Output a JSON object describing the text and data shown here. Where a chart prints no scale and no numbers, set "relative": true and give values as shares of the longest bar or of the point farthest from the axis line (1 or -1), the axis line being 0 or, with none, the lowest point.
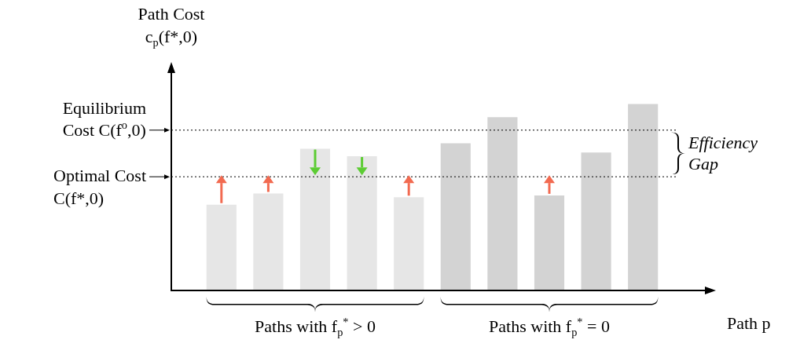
{
  "chart_data": {
    "type": "bar",
    "relative": true,
    "categories": [
      null,
      null,
      null,
      null,
      null,
      null,
      null,
      null,
      null,
      null
    ],
    "values": [
      0.46,
      0.52,
      0.76,
      0.72,
      0.5,
      0.79,
      0.93,
      0.51,
      0.74,
      1
    ],
    "colors": [
      "#e6e6e6",
      "#e6e6e6",
      "#e6e6e6",
      "#e6e6e6",
      "#e6e6e6",
      "#d3d3d3",
      "#d3d3d3",
      "#d3d3d3",
      "#d3d3d3",
      "#d3d3d3"
    ],
    "ylabel": "Path Cost\nc$_{p}$(f*,0)",
    "xlabel": "Path p",
    "ref_lines": [
      {
        "axis": "y",
        "value": 0.86,
        "label": "Equilibrium\nCost C(f$^{o}$,0)",
        "color": "#000000",
        "line_style": "dotted"
      },
      {
        "axis": "y",
        "value": 0.61,
        "label": "Optimal Cost\nC(f*,0)",
        "color": "#000000",
        "line_style": "dotted"
      }
    ],
    "annotations": [
      "Efficiency\nGap",
      "Paths with f$_{p}$$^{*}$ > 0",
      "Paths with f$_{p}$$^{*}$ = 0"
    ]
  }
}
